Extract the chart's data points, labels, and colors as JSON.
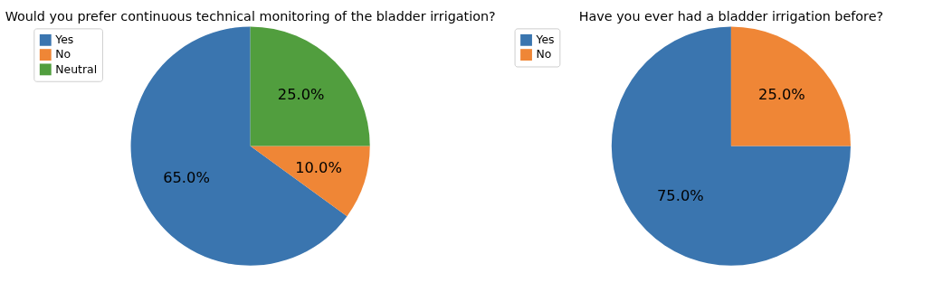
{
  "chart_data": [
    {
      "type": "pie",
      "title": "Would you prefer continuous technical monitoring of the bladder irrigation?",
      "categories": [
        "Yes",
        "No",
        "Neutral"
      ],
      "values": [
        65,
        10,
        25
      ],
      "colors": [
        "#3a75af",
        "#ef8636",
        "#519e3e"
      ],
      "value_labels": [
        "65.0%",
        "10.0%",
        "25.0%"
      ],
      "legend": "top left"
    },
    {
      "type": "pie",
      "title": "Have you ever had a bladder irrigation before?",
      "categories": [
        "Yes",
        "No"
      ],
      "values": [
        75,
        25
      ],
      "colors": [
        "#3a75af",
        "#ef8636"
      ],
      "value_labels": [
        "75.0%",
        "25.0%"
      ],
      "legend": "top left"
    }
  ]
}
